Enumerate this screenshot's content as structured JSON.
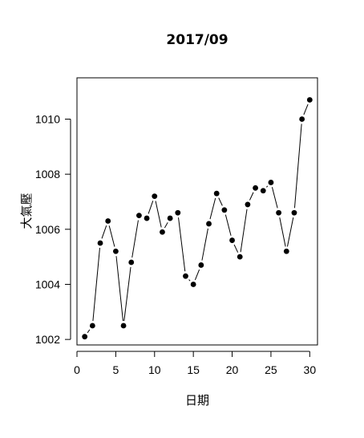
{
  "chart_data": {
    "type": "line",
    "title": "2017/09",
    "xlabel": "日期",
    "ylabel": "大氣壓",
    "xlim": [
      0,
      31
    ],
    "ylim": [
      1001.8,
      1011.5
    ],
    "xticks": [
      0,
      5,
      10,
      15,
      20,
      25,
      30
    ],
    "yticks": [
      1002,
      1004,
      1006,
      1008,
      1010
    ],
    "grid": false,
    "marker": "filled-circle",
    "line_color": "#000000",
    "series": [
      {
        "x": [
          1,
          2,
          3,
          4,
          5,
          6,
          7,
          8,
          9,
          10,
          11,
          12,
          13,
          14,
          15,
          16,
          17,
          18,
          19,
          20,
          21,
          22,
          23,
          24,
          25,
          26,
          27,
          28,
          29,
          30
        ],
        "values": [
          1002.1,
          1002.5,
          1005.5,
          1006.3,
          1005.2,
          1002.5,
          1004.8,
          1006.5,
          1006.4,
          1007.2,
          1005.9,
          1006.4,
          1006.6,
          1004.3,
          1004.0,
          1004.7,
          1006.2,
          1007.3,
          1006.7,
          1005.6,
          1005.0,
          1006.9,
          1007.5,
          1007.4,
          1007.7,
          1006.6,
          1005.2,
          1006.6,
          1010.0,
          1010.7
        ]
      }
    ]
  }
}
